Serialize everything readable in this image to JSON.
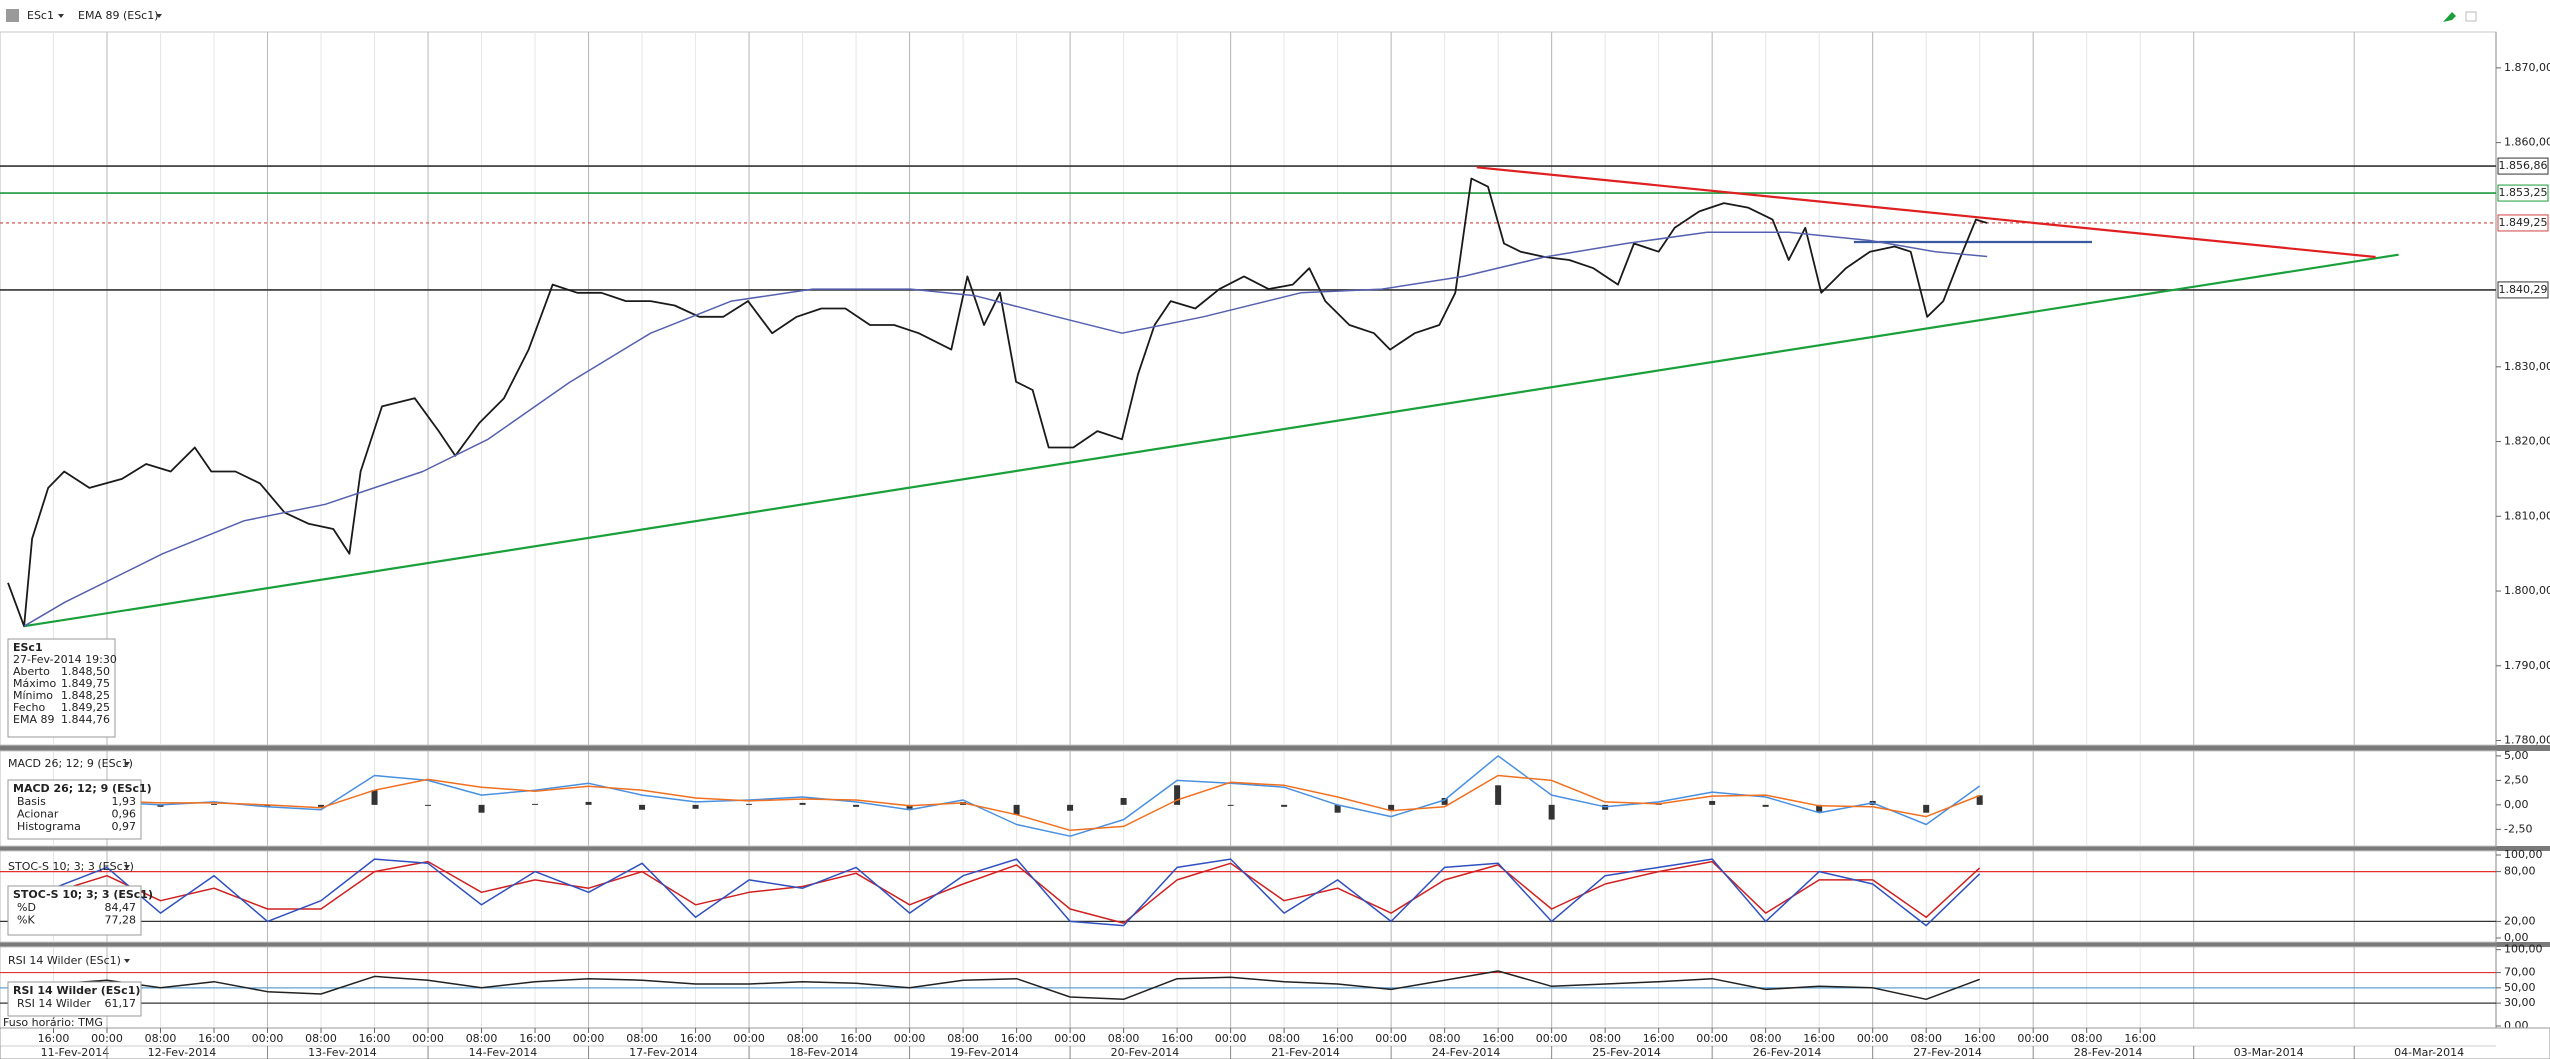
{
  "chart_data": [
    {
      "type": "line",
      "ylim": [
        1779.4,
        1874.8
      ],
      "yticks": [
        {
          "value": 1870,
          "label": "1.870,00"
        },
        {
          "value": 1860,
          "label": "1.860,00"
        },
        {
          "value": 1830,
          "label": "1.830,00"
        },
        {
          "value": 1820,
          "label": "1.820,00"
        },
        {
          "value": 1810,
          "label": "1.810,00"
        },
        {
          "value": 1800,
          "label": "1.800,00"
        },
        {
          "value": 1790,
          "label": "1.790,00"
        },
        {
          "value": 1780,
          "label": "1.780,00"
        }
      ],
      "series": [
        {
          "name": "ESc1",
          "color": "#1a1a1a",
          "x": [
            -0.85,
            -0.55,
            -0.4,
            -0.1,
            0.2,
            0.67,
            1.28,
            1.73,
            2.19,
            2.64,
            2.95,
            3.4,
            3.86,
            4.32,
            4.77,
            5.23,
            5.53,
            5.74,
            6.14,
            6.75,
            7.2,
            7.51,
            7.96,
            8.42,
            8.88,
            9.33,
            9.79,
            10.24,
            10.7,
            11.16,
            11.61,
            12.07,
            12.52,
            12.98,
            13.43,
            13.89,
            14.35,
            14.8,
            15.26,
            15.71,
            16.17,
            16.78,
            17.08,
            17.39,
            17.69,
            17.99,
            18.3,
            18.6,
            19.06,
            19.51,
            19.97,
            20.27,
            20.58,
            20.88,
            21.34,
            21.79,
            22.25,
            22.71,
            23.16,
            23.47,
            23.77,
            24.22,
            24.68,
            24.98,
            25.44,
            25.9,
            26.2,
            26.5,
            26.81,
            27.11,
            27.42,
            27.87,
            28.33,
            28.78,
            29.24,
            29.54,
            30,
            30.3,
            30.76,
            31.22,
            31.67,
            32.13,
            32.43,
            32.74,
            33.04,
            33.5,
            33.95,
            34.41,
            34.71,
            35.02,
            35.32,
            35.62,
            35.93,
            36.14
          ],
          "values": [
            1801.1,
            1795.3,
            1807,
            1813.8,
            1816,
            1813.8,
            1815,
            1817,
            1816,
            1819.2,
            1816,
            1816,
            1814.4,
            1810.5,
            1809,
            1808.3,
            1805,
            1816,
            1824.7,
            1825.8,
            1821.4,
            1818.1,
            1822.5,
            1825.8,
            1832.3,
            1841,
            1839.9,
            1839.9,
            1838.8,
            1838.8,
            1838.2,
            1836.7,
            1836.7,
            1838.8,
            1834.5,
            1836.7,
            1837.8,
            1837.8,
            1835.6,
            1835.6,
            1834.5,
            1832.3,
            1842.1,
            1835.6,
            1839.9,
            1828,
            1826.9,
            1819.2,
            1819.2,
            1821.4,
            1820.3,
            1829,
            1835.6,
            1838.8,
            1837.8,
            1840.4,
            1842.1,
            1840.4,
            1841,
            1843.2,
            1838.8,
            1835.6,
            1834.5,
            1832.3,
            1834.5,
            1835.6,
            1839.9,
            1855.2,
            1854.1,
            1846.5,
            1845.4,
            1844.7,
            1844.3,
            1843.2,
            1841,
            1846.5,
            1845.4,
            1848.6,
            1850.8,
            1851.9,
            1851.3,
            1849.7,
            1844.3,
            1848.6,
            1839.9,
            1843.2,
            1845.4,
            1846.1,
            1845.4,
            1836.7,
            1838.8,
            1844.3,
            1849.7,
            1849.25
          ]
        },
        {
          "name": "EMA 89 (ESc1)",
          "color": "#5560b0",
          "x": [
            -0.55,
            0.21,
            2.04,
            3.56,
            5.08,
            6.9,
            8.12,
            9.64,
            11.16,
            12.67,
            14.19,
            16.02,
            17.23,
            18.75,
            19.97,
            21.49,
            23.31,
            24.83,
            26.35,
            27.87,
            29.39,
            30.91,
            32.43,
            33.95,
            35.17,
            36.14
          ],
          "values": [
            1795.3,
            1798.5,
            1805,
            1809.4,
            1811.6,
            1816,
            1820.3,
            1827.9,
            1834.5,
            1838.8,
            1840.4,
            1840.4,
            1839.5,
            1836.7,
            1834.5,
            1836.7,
            1839.9,
            1840.4,
            1842.1,
            1844.7,
            1846.5,
            1848,
            1848,
            1846.9,
            1845.4,
            1844.76
          ]
        }
      ],
      "hlines": [
        {
          "value": 1856.86,
          "label": "1.856,86",
          "color": "#333333"
        },
        {
          "value": 1853.25,
          "label": "1.853,25",
          "color": "#1a9a3a"
        },
        {
          "value": 1849.25,
          "label": "1.849,25",
          "color": "#d04040",
          "dashed": true
        },
        {
          "value": 1840.29,
          "label": "1.840,29",
          "color": "#333333"
        }
      ],
      "trendlines": [
        {
          "color": "#1aa03a",
          "x": [
            -0.55,
            43.83
          ],
          "values": [
            1795.3,
            1845
          ]
        },
        {
          "color": "#e02020",
          "x": [
            26.6,
            43.4
          ],
          "values": [
            1856.7,
            1844.7
          ]
        },
        {
          "color": "#3a5aa0",
          "x": [
            33.65,
            38.1
          ],
          "values": [
            1846.7,
            1846.7
          ]
        }
      ],
      "info_box": {
        "time": "27-Fev-2014 19:30",
        "rows": [
          {
            "label": "Aberto",
            "value": "1.848,50"
          },
          {
            "label": "Máximo",
            "value": "1.849,75"
          },
          {
            "label": "Mínimo",
            "value": "1.848,25"
          },
          {
            "label": "Fecho",
            "value": "1.849,25"
          },
          {
            "label": "EMA 89",
            "value": "1.844,76"
          }
        ]
      }
    },
    {
      "type": "line",
      "title": "MACD 26; 12; 9 (ESc1)",
      "ylim": [
        -4.2,
        5.5
      ],
      "yticks": [
        {
          "value": 5,
          "label": "5,00"
        },
        {
          "value": 2.5,
          "label": "2,50"
        },
        {
          "value": 0,
          "label": "0,00"
        },
        {
          "value": -2.5,
          "label": "-2,50"
        }
      ],
      "x": [
        0,
        1,
        2,
        3,
        4,
        5,
        6,
        7,
        8,
        9,
        10,
        11,
        12,
        13,
        14,
        15,
        16,
        17,
        18,
        19,
        20,
        21,
        22,
        23,
        24,
        25,
        26,
        27,
        28,
        29,
        30,
        31,
        32,
        33,
        34,
        35,
        36
      ],
      "series": [
        {
          "name": "Basis",
          "color": "#4a90e0",
          "readout": "1,93",
          "values": [
            0.5,
            0.3,
            0.0,
            0.3,
            -0.2,
            -0.5,
            3.0,
            2.5,
            1.0,
            1.5,
            2.2,
            1.0,
            0.3,
            0.5,
            0.8,
            0.3,
            -0.5,
            0.5,
            -2.0,
            -3.2,
            -1.5,
            2.5,
            2.2,
            1.8,
            0.0,
            -1.2,
            0.5,
            5.0,
            1.0,
            -0.2,
            0.3,
            1.3,
            0.8,
            -0.8,
            0.2,
            -2.0,
            1.93
          ]
        },
        {
          "name": "Acionar",
          "color": "#f07020",
          "readout": "0,96",
          "values": [
            0.4,
            0.4,
            0.2,
            0.2,
            0.0,
            -0.3,
            1.5,
            2.6,
            1.8,
            1.4,
            1.9,
            1.5,
            0.7,
            0.4,
            0.6,
            0.5,
            -0.1,
            0.2,
            -1.0,
            -2.6,
            -2.2,
            0.5,
            2.3,
            2.0,
            0.8,
            -0.6,
            -0.2,
            3.0,
            2.5,
            0.3,
            0.1,
            0.9,
            1.0,
            -0.1,
            -0.2,
            -1.2,
            0.96
          ]
        },
        {
          "name": "Histograma",
          "type": "bar",
          "color": "#333333",
          "readout": "0,97",
          "values": [
            0.1,
            -0.1,
            -0.2,
            0.1,
            -0.2,
            -0.2,
            1.5,
            -0.1,
            -0.8,
            0.1,
            0.3,
            -0.5,
            -0.4,
            0.1,
            0.2,
            -0.2,
            -0.4,
            0.3,
            -1.0,
            -0.6,
            0.7,
            2.0,
            -0.1,
            -0.2,
            -0.8,
            -0.6,
            0.7,
            2.0,
            -1.5,
            -0.5,
            0.2,
            0.4,
            -0.2,
            -0.7,
            0.4,
            -0.8,
            0.97
          ]
        }
      ]
    },
    {
      "type": "line",
      "title": "STOC-S 10; 3; 3 (ESc1)",
      "ylim": [
        -4.8,
        104.8
      ],
      "yticks": [
        {
          "value": 100,
          "label": "100,00"
        },
        {
          "value": 80,
          "label": "80,00"
        },
        {
          "value": 20,
          "label": "20,00"
        },
        {
          "value": 0,
          "label": "0,00"
        }
      ],
      "levels": [
        {
          "value": 80,
          "color": "#e03030"
        },
        {
          "value": 20,
          "color": "#333333"
        }
      ],
      "x": [
        0,
        1,
        2,
        3,
        4,
        5,
        6,
        7,
        8,
        9,
        10,
        11,
        12,
        13,
        14,
        15,
        16,
        17,
        18,
        19,
        20,
        21,
        22,
        23,
        24,
        25,
        26,
        27,
        28,
        29,
        30,
        31,
        32,
        33,
        34,
        35,
        36
      ],
      "series": [
        {
          "name": "%D",
          "color": "#d02020",
          "readout": "84,47",
          "values": [
            55,
            75,
            45,
            60,
            35,
            35,
            80,
            92,
            55,
            70,
            60,
            80,
            40,
            55,
            62,
            78,
            40,
            65,
            88,
            35,
            18,
            70,
            90,
            45,
            60,
            30,
            70,
            88,
            35,
            65,
            80,
            92,
            30,
            70,
            70,
            25,
            84.47
          ]
        },
        {
          "name": "%K",
          "color": "#3050c0",
          "readout": "77,28",
          "values": [
            60,
            85,
            30,
            75,
            20,
            45,
            95,
            90,
            40,
            80,
            55,
            90,
            25,
            70,
            60,
            85,
            30,
            75,
            95,
            20,
            15,
            85,
            95,
            30,
            70,
            20,
            85,
            90,
            20,
            75,
            85,
            95,
            20,
            80,
            65,
            15,
            77.28
          ]
        }
      ]
    },
    {
      "type": "line",
      "title": "RSI 14 Wilder (ESc1)",
      "ylim": [
        -2.6,
        103.5
      ],
      "yticks": [
        {
          "value": 100,
          "label": "100,00"
        },
        {
          "value": 70,
          "label": "70,00"
        },
        {
          "value": 50,
          "label": "50,00"
        },
        {
          "value": 30,
          "label": "30,00"
        },
        {
          "value": 0,
          "label": "0,00"
        }
      ],
      "levels": [
        {
          "value": 70,
          "color": "#e03030"
        },
        {
          "value": 50,
          "color": "#60a0d0"
        },
        {
          "value": 30,
          "color": "#333333"
        }
      ],
      "x": [
        0,
        1,
        2,
        3,
        4,
        5,
        6,
        7,
        8,
        9,
        10,
        11,
        12,
        13,
        14,
        15,
        16,
        17,
        18,
        19,
        20,
        21,
        22,
        23,
        24,
        25,
        26,
        27,
        28,
        29,
        30,
        31,
        32,
        33,
        34,
        35,
        36
      ],
      "series": [
        {
          "name": "RSI 14 Wilder",
          "color": "#222222",
          "readout": "61,17",
          "values": [
            55,
            60,
            50,
            58,
            45,
            42,
            65,
            60,
            50,
            58,
            62,
            60,
            55,
            55,
            58,
            56,
            50,
            60,
            62,
            38,
            35,
            62,
            64,
            58,
            55,
            48,
            60,
            72,
            52,
            55,
            58,
            62,
            48,
            52,
            50,
            35,
            61.17
          ]
        }
      ]
    }
  ],
  "time_axis": {
    "xlim": [
      -1,
      45.65
    ],
    "xticks": [
      {
        "value": 0,
        "label": "16:00"
      },
      {
        "value": 1,
        "label": "00:00"
      },
      {
        "value": 2,
        "label": "08:00"
      },
      {
        "value": 3,
        "label": "16:00"
      },
      {
        "value": 4,
        "label": "00:00"
      },
      {
        "value": 5,
        "label": "08:00"
      },
      {
        "value": 6,
        "label": "16:00"
      },
      {
        "value": 7,
        "label": "00:00"
      },
      {
        "value": 8,
        "label": "08:00"
      },
      {
        "value": 9,
        "label": "16:00"
      },
      {
        "value": 10,
        "label": "00:00"
      },
      {
        "value": 11,
        "label": "08:00"
      },
      {
        "value": 12,
        "label": "16:00"
      },
      {
        "value": 13,
        "label": "00:00"
      },
      {
        "value": 14,
        "label": "08:00"
      },
      {
        "value": 15,
        "label": "16:00"
      },
      {
        "value": 16,
        "label": "00:00"
      },
      {
        "value": 17,
        "label": "08:00"
      },
      {
        "value": 18,
        "label": "16:00"
      },
      {
        "value": 19,
        "label": "00:00"
      },
      {
        "value": 20,
        "label": "08:00"
      },
      {
        "value": 21,
        "label": "16:00"
      },
      {
        "value": 22,
        "label": "00:00"
      },
      {
        "value": 23,
        "label": "08:00"
      },
      {
        "value": 24,
        "label": "16:00"
      },
      {
        "value": 25,
        "label": "00:00"
      },
      {
        "value": 26,
        "label": "08:00"
      },
      {
        "value": 27,
        "label": "16:00"
      },
      {
        "value": 28,
        "label": "00:00"
      },
      {
        "value": 29,
        "label": "08:00"
      },
      {
        "value": 30,
        "label": "16:00"
      },
      {
        "value": 31,
        "label": "00:00"
      },
      {
        "value": 32,
        "label": "08:00"
      },
      {
        "value": 33,
        "label": "16:00"
      },
      {
        "value": 34,
        "label": "00:00"
      },
      {
        "value": 35,
        "label": "08:00"
      },
      {
        "value": 36,
        "label": "16:00"
      },
      {
        "value": 37,
        "label": "00:00"
      },
      {
        "value": 38,
        "label": "08:00"
      },
      {
        "value": 39,
        "label": "16:00"
      }
    ],
    "date_ticks": [
      {
        "value": -1,
        "label": "11-Fev-2014"
      },
      {
        "value": 1,
        "label": "12-Fev-2014"
      },
      {
        "value": 4,
        "label": "13-Fev-2014"
      },
      {
        "value": 7,
        "label": "14-Fev-2014"
      },
      {
        "value": 10,
        "label": "17-Fev-2014"
      },
      {
        "value": 13,
        "label": "18-Fev-2014"
      },
      {
        "value": 16,
        "label": "19-Fev-2014"
      },
      {
        "value": 19,
        "label": "20-Fev-2014"
      },
      {
        "value": 22,
        "label": "21-Fev-2014"
      },
      {
        "value": 25,
        "label": "24-Fev-2014"
      },
      {
        "value": 28,
        "label": "25-Fev-2014"
      },
      {
        "value": 31,
        "label": "26-Fev-2014"
      },
      {
        "value": 34,
        "label": "27-Fev-2014"
      },
      {
        "value": 37,
        "label": "28-Fev-2014"
      },
      {
        "value": 40,
        "label": "03-Mar-2014"
      },
      {
        "value": 43,
        "label": "04-Mar-2014"
      }
    ],
    "timezone": "Fuso horário: TMG"
  }
}
